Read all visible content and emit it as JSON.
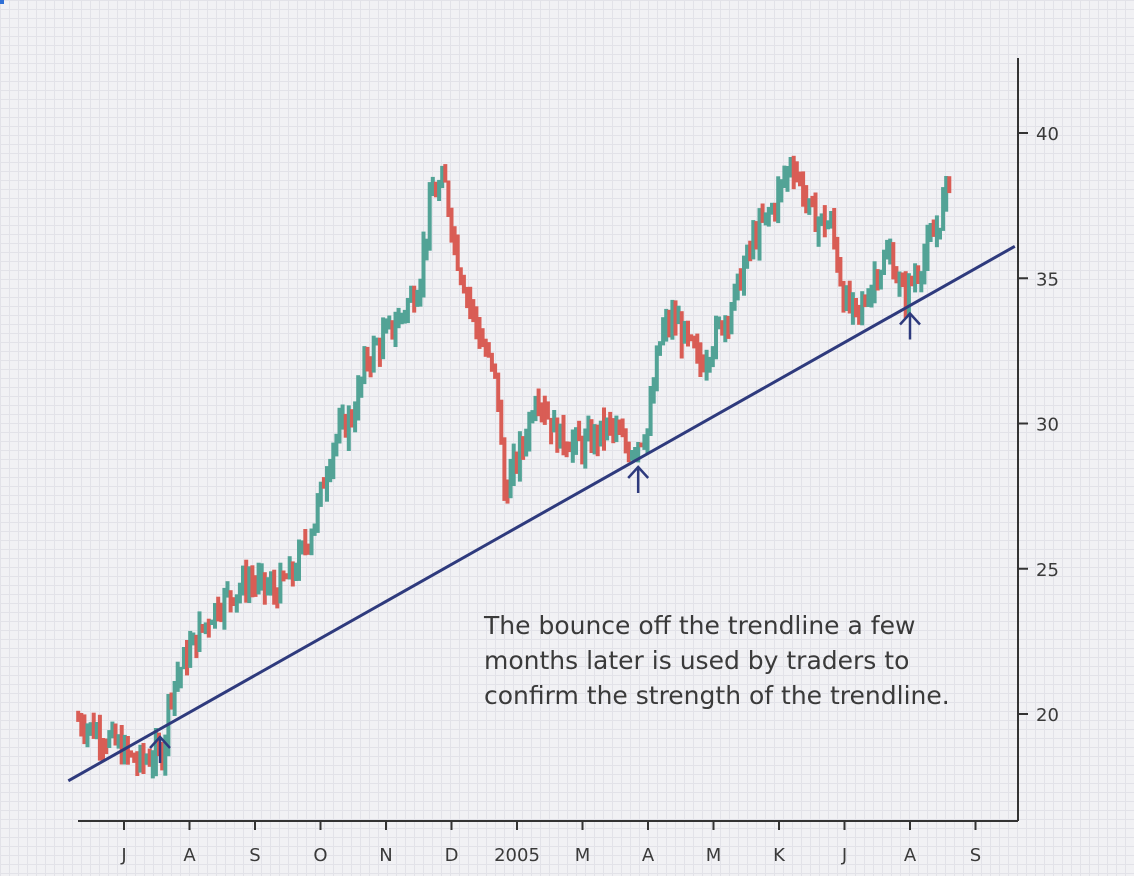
{
  "chart_data": {
    "type": "ohlc",
    "title": "",
    "xlabel": "",
    "ylabel": "",
    "ylim": [
      16.3,
      42.8
    ],
    "y_ticks": [
      20,
      25,
      30,
      35,
      40
    ],
    "x_tick_labels": [
      "J",
      "A",
      "S",
      "O",
      "N",
      "D",
      "2005",
      "M",
      "A",
      "M",
      "K",
      "J",
      "A",
      "S"
    ],
    "x_tick_positions": [
      1,
      2,
      3,
      4,
      5,
      6,
      7,
      8,
      9,
      10,
      11,
      12,
      13,
      14
    ],
    "x_range": [
      0.3,
      14.6
    ],
    "grid": true,
    "up_color": "#52a396",
    "down_color": "#d95d55",
    "trendline_color": "#2e3a7d",
    "price_anchors": [
      [
        0.3,
        19.8
      ],
      [
        0.8,
        19.1
      ],
      [
        1.2,
        18.3
      ],
      [
        1.6,
        18.7
      ],
      [
        1.7,
        20.8
      ],
      [
        2.0,
        22.2
      ],
      [
        2.4,
        23.7
      ],
      [
        2.9,
        24.6
      ],
      [
        3.3,
        24.2
      ],
      [
        3.6,
        24.9
      ],
      [
        3.9,
        26.6
      ],
      [
        4.2,
        29.4
      ],
      [
        4.5,
        30.3
      ],
      [
        4.7,
        32.2
      ],
      [
        5.2,
        33.6
      ],
      [
        5.5,
        34.8
      ],
      [
        5.7,
        37.9
      ],
      [
        5.9,
        38.2
      ],
      [
        6.1,
        35.6
      ],
      [
        6.4,
        33.2
      ],
      [
        6.7,
        31.3
      ],
      [
        6.8,
        27.6
      ],
      [
        7.1,
        29.3
      ],
      [
        7.3,
        31.2
      ],
      [
        7.6,
        29.6
      ],
      [
        8.0,
        29.2
      ],
      [
        8.4,
        29.9
      ],
      [
        8.7,
        29.1
      ],
      [
        9.0,
        29.8
      ],
      [
        9.2,
        33.1
      ],
      [
        9.4,
        33.6
      ],
      [
        9.8,
        32.0
      ],
      [
        10.3,
        34.2
      ],
      [
        10.6,
        36.3
      ],
      [
        10.9,
        37.4
      ],
      [
        11.2,
        39.1
      ],
      [
        11.5,
        37.1
      ],
      [
        11.8,
        36.8
      ],
      [
        12.0,
        34.2
      ],
      [
        12.2,
        33.6
      ],
      [
        12.5,
        35.3
      ],
      [
        12.7,
        35.8
      ],
      [
        12.9,
        34.3
      ],
      [
        13.1,
        35.2
      ],
      [
        13.4,
        36.6
      ],
      [
        13.6,
        38.4
      ]
    ],
    "trendline": {
      "x": [
        0.15,
        14.6
      ],
      "y": [
        17.7,
        36.1
      ]
    },
    "bounce_markers_x": [
      1.55,
      8.85,
      13.0
    ],
    "annotation": [
      "The bounce off the trendline a few",
      "months later is used by traders to",
      "confirm the strength of the trendline."
    ]
  }
}
